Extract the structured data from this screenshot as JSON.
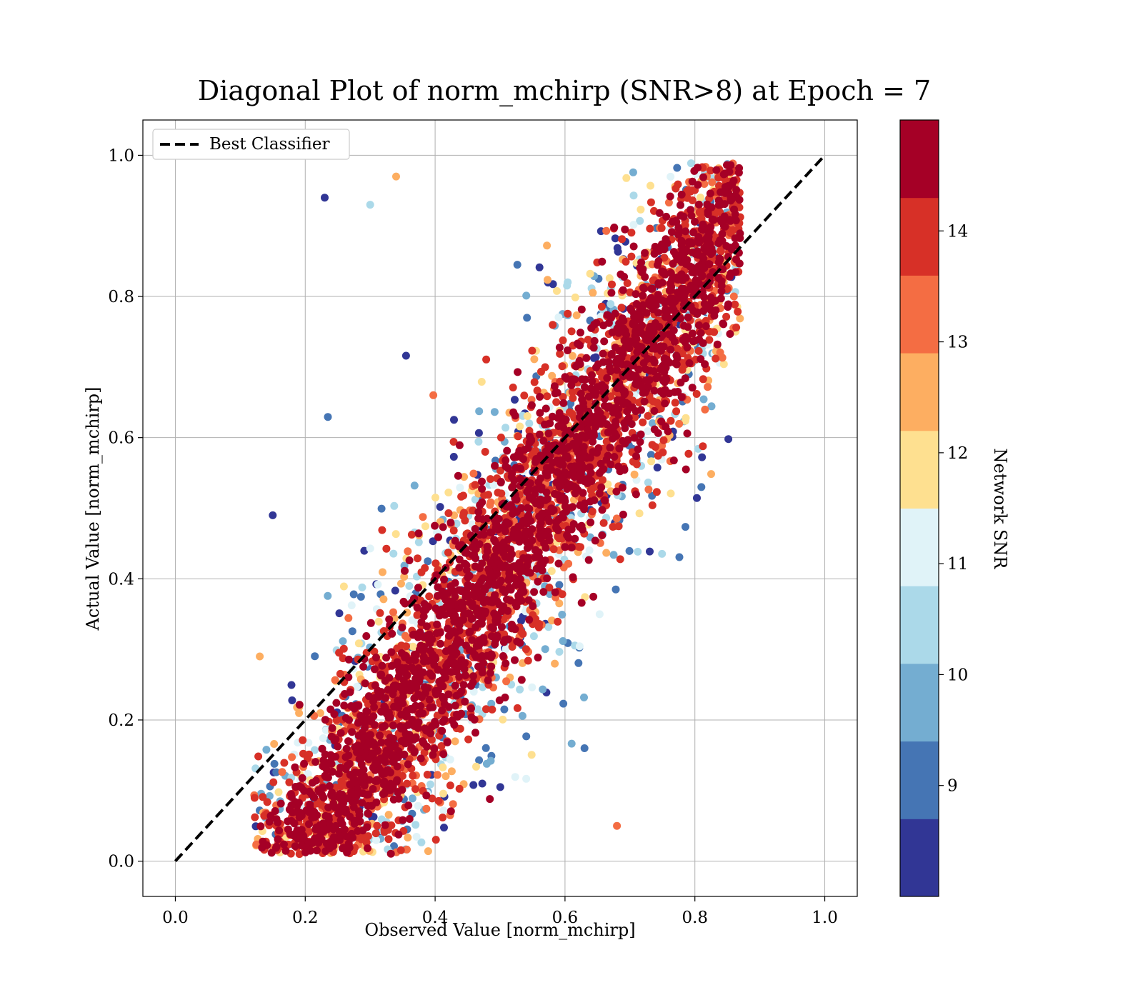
{
  "chart_data": {
    "type": "scatter",
    "title": "Diagonal Plot of norm_mchirp (SNR>8) at Epoch = 7",
    "xlabel": "Observed Value [norm_mchirp]",
    "ylabel": "Actual Value [norm_mchirp]",
    "xlim": [
      -0.05,
      1.05
    ],
    "ylim": [
      -0.05,
      1.05
    ],
    "x_ticks": [
      0.0,
      0.2,
      0.4,
      0.6,
      0.8,
      1.0
    ],
    "y_ticks": [
      0.0,
      0.2,
      0.4,
      0.6,
      0.8,
      1.0
    ],
    "x_tick_labels": [
      "0.0",
      "0.2",
      "0.4",
      "0.6",
      "0.8",
      "1.0"
    ],
    "y_tick_labels": [
      "0.0",
      "0.2",
      "0.4",
      "0.6",
      "0.8",
      "1.0"
    ],
    "grid": true,
    "legend": {
      "placement": "top-left",
      "entries": [
        {
          "label": "Best Classifier",
          "style": "dashed",
          "color": "#000000"
        }
      ]
    },
    "reference_line": {
      "name": "Best Classifier",
      "x": [
        0.0,
        1.0
      ],
      "y": [
        0.0,
        1.0
      ],
      "style": "dashed",
      "color": "#000000"
    },
    "colorbar": {
      "label": "Network SNR",
      "range": [
        8,
        15
      ],
      "ticks": [
        9,
        10,
        11,
        12,
        13,
        14
      ],
      "tick_labels": [
        "9",
        "10",
        "11",
        "12",
        "13",
        "14"
      ],
      "colors": [
        "#313695",
        "#4575b4",
        "#74add1",
        "#abd9e9",
        "#e0f3f8",
        "#fee090",
        "#fdae61",
        "#f46d43",
        "#d73027",
        "#a50026"
      ]
    },
    "scatter_distribution": {
      "description_of_data": "dense band of predictions around diagonal; high-SNR points near diagonal, low-SNR points spread off-diagonal",
      "x_range": [
        0.12,
        0.87
      ],
      "y_range": [
        0.0,
        1.0
      ],
      "band_center_slope": 1.0,
      "spread_high_snr": 0.09,
      "spread_low_snr": 0.2,
      "sample_points": [
        {
          "x": 0.23,
          "y": 0.94,
          "snr": 8.5
        },
        {
          "x": 0.34,
          "y": 0.97,
          "snr": 12.3
        },
        {
          "x": 0.15,
          "y": 0.49,
          "snr": 8.5
        },
        {
          "x": 0.86,
          "y": 0.8,
          "snr": 13.3
        },
        {
          "x": 0.68,
          "y": 0.05,
          "snr": 13.4
        },
        {
          "x": 0.85,
          "y": 0.9,
          "snr": 9.2
        },
        {
          "x": 0.63,
          "y": 0.16,
          "snr": 9.1
        },
        {
          "x": 0.3,
          "y": 0.93,
          "snr": 10.3
        },
        {
          "x": 0.81,
          "y": 0.53,
          "snr": 9.3
        },
        {
          "x": 0.13,
          "y": 0.29,
          "snr": 12.4
        }
      ]
    }
  }
}
